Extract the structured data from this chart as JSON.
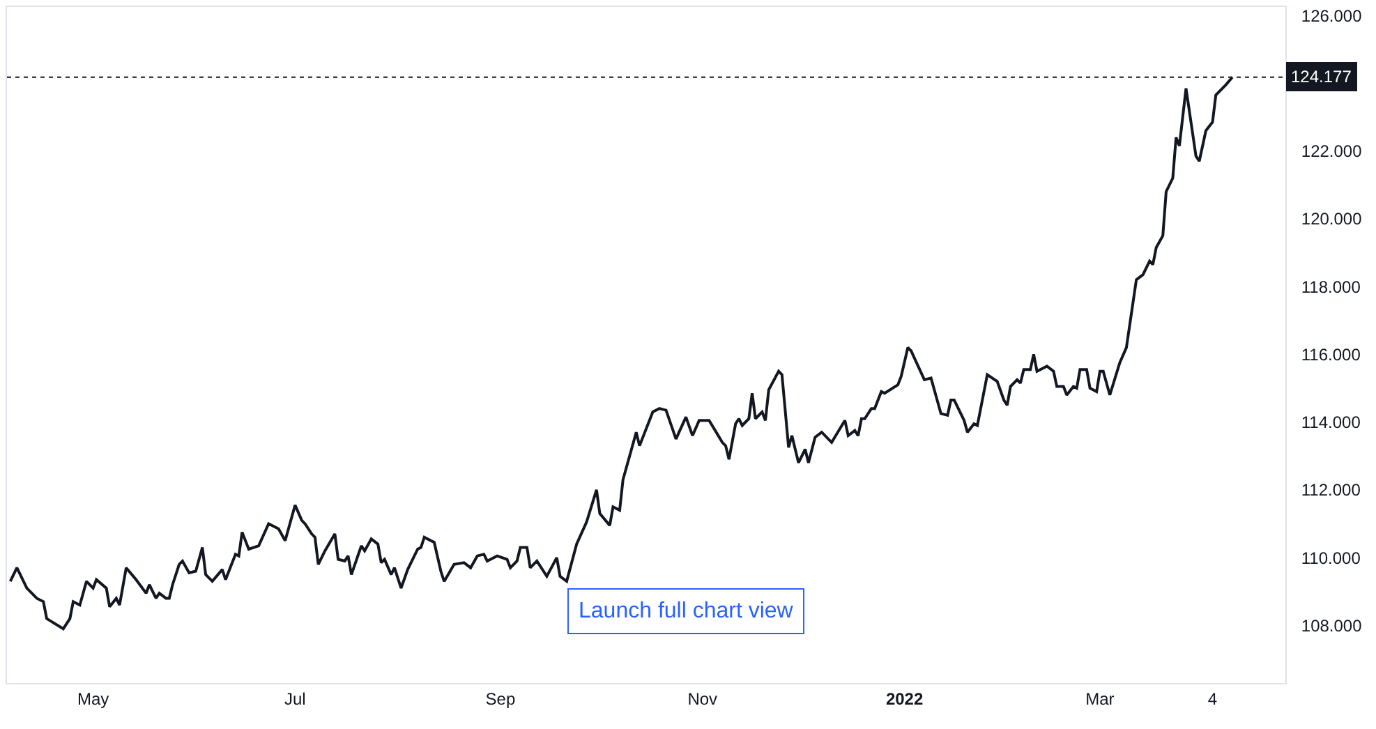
{
  "chart_data": {
    "type": "line",
    "x": [
      "2021-04-06",
      "2021-04-08",
      "2021-04-11",
      "2021-04-14",
      "2021-04-16",
      "2021-04-17",
      "2021-04-22",
      "2021-04-24",
      "2021-04-25",
      "2021-04-27",
      "2021-04-29",
      "2021-05-01",
      "2021-05-02",
      "2021-05-05",
      "2021-05-06",
      "2021-05-08",
      "2021-05-09",
      "2021-05-11",
      "2021-05-14",
      "2021-05-17",
      "2021-05-18",
      "2021-05-20",
      "2021-05-21",
      "2021-05-23",
      "2021-05-24",
      "2021-05-25",
      "2021-05-27",
      "2021-05-28",
      "2021-05-30",
      "2021-06-01",
      "2021-06-03",
      "2021-06-04",
      "2021-06-06",
      "2021-06-09",
      "2021-06-10",
      "2021-06-13",
      "2021-06-14",
      "2021-06-15",
      "2021-06-17",
      "2021-06-20",
      "2021-06-23",
      "2021-06-26",
      "2021-06-28",
      "2021-07-01",
      "2021-07-03",
      "2021-07-04",
      "2021-07-06",
      "2021-07-07",
      "2021-07-08",
      "2021-07-10",
      "2021-07-13",
      "2021-07-14",
      "2021-07-16",
      "2021-07-17",
      "2021-07-18",
      "2021-07-21",
      "2021-07-22",
      "2021-07-24",
      "2021-07-26",
      "2021-07-27",
      "2021-07-28",
      "2021-07-30",
      "2021-07-31",
      "2021-08-02",
      "2021-08-04",
      "2021-08-07",
      "2021-08-08",
      "2021-08-09",
      "2021-08-12",
      "2021-08-14",
      "2021-08-15",
      "2021-08-18",
      "2021-08-21",
      "2021-08-23",
      "2021-08-25",
      "2021-08-27",
      "2021-08-28",
      "2021-08-31",
      "2021-09-03",
      "2021-09-04",
      "2021-09-06",
      "2021-09-07",
      "2021-09-09",
      "2021-09-10",
      "2021-09-12",
      "2021-09-15",
      "2021-09-18",
      "2021-09-19",
      "2021-09-21",
      "2021-09-24",
      "2021-09-27",
      "2021-09-30",
      "2021-10-01",
      "2021-10-04",
      "2021-10-05",
      "2021-10-07",
      "2021-10-08",
      "2021-10-11",
      "2021-10-12",
      "2021-10-13",
      "2021-10-17",
      "2021-10-19",
      "2021-10-21",
      "2021-10-24",
      "2021-10-27",
      "2021-10-29",
      "2021-10-31",
      "2021-11-03",
      "2021-11-07",
      "2021-11-08",
      "2021-11-09",
      "2021-11-11",
      "2021-11-12",
      "2021-11-13",
      "2021-11-15",
      "2021-11-16",
      "2021-11-17",
      "2021-11-19",
      "2021-11-20",
      "2021-11-21",
      "2021-11-24",
      "2021-11-25",
      "2021-11-27",
      "2021-11-28",
      "2021-11-30",
      "2021-12-02",
      "2021-12-03",
      "2021-12-05",
      "2021-12-07",
      "2021-12-10",
      "2021-12-14",
      "2021-12-15",
      "2021-12-17",
      "2021-12-18",
      "2021-12-19",
      "2021-12-20",
      "2021-12-22",
      "2021-12-23",
      "2021-12-25",
      "2021-12-26",
      "2021-12-30",
      "2021-12-31",
      "2022-01-02",
      "2022-01-03",
      "2022-01-07",
      "2022-01-09",
      "2022-01-12",
      "2022-01-14",
      "2022-01-15",
      "2022-01-16",
      "2022-01-19",
      "2022-01-20",
      "2022-01-22",
      "2022-01-23",
      "2022-01-26",
      "2022-01-29",
      "2022-01-31",
      "2022-02-01",
      "2022-02-02",
      "2022-02-04",
      "2022-02-05",
      "2022-02-06",
      "2022-02-08",
      "2022-02-09",
      "2022-02-10",
      "2022-02-13",
      "2022-02-15",
      "2022-02-16",
      "2022-02-18",
      "2022-02-19",
      "2022-02-21",
      "2022-02-22",
      "2022-02-23",
      "2022-02-25",
      "2022-02-26",
      "2022-02-28",
      "2022-03-01",
      "2022-03-02",
      "2022-03-04",
      "2022-03-07",
      "2022-03-09",
      "2022-03-12",
      "2022-03-14",
      "2022-03-16",
      "2022-03-17",
      "2022-03-18",
      "2022-03-20",
      "2022-03-21",
      "2022-03-23",
      "2022-03-24",
      "2022-03-25",
      "2022-03-27",
      "2022-03-30",
      "2022-03-31",
      "2022-04-02",
      "2022-04-04",
      "2022-04-05",
      "2022-04-08",
      "2022-04-10"
    ],
    "series": [
      {
        "color": "#131722",
        "values": [
          109.3,
          109.7,
          109.1,
          108.8,
          108.7,
          108.2,
          107.9,
          108.2,
          108.7,
          108.6,
          109.3,
          109.1,
          109.35,
          109.1,
          108.55,
          108.8,
          108.6,
          109.7,
          109.35,
          108.95,
          109.2,
          108.8,
          108.95,
          108.8,
          108.8,
          109.2,
          109.8,
          109.9,
          109.55,
          109.6,
          110.3,
          109.5,
          109.3,
          109.65,
          109.35,
          110.1,
          110.05,
          110.75,
          110.25,
          110.35,
          111.0,
          110.85,
          110.5,
          111.55,
          111.1,
          111.0,
          110.7,
          110.6,
          109.8,
          110.2,
          110.7,
          109.95,
          109.9,
          110.05,
          109.5,
          110.35,
          110.2,
          110.55,
          110.4,
          109.85,
          109.95,
          109.5,
          109.7,
          109.1,
          109.65,
          110.25,
          110.3,
          110.6,
          110.45,
          109.6,
          109.3,
          109.8,
          109.85,
          109.7,
          110.05,
          110.1,
          109.9,
          110.05,
          109.95,
          109.7,
          109.9,
          110.3,
          110.3,
          109.7,
          109.9,
          109.45,
          110.0,
          109.45,
          109.3,
          110.4,
          111.05,
          112.0,
          111.3,
          110.95,
          111.5,
          111.4,
          112.3,
          113.35,
          113.7,
          113.3,
          114.3,
          114.4,
          114.35,
          113.5,
          114.15,
          113.6,
          114.05,
          114.05,
          113.4,
          113.3,
          112.9,
          113.95,
          114.1,
          113.9,
          114.1,
          114.85,
          114.1,
          114.3,
          114.05,
          114.95,
          115.5,
          115.4,
          113.25,
          113.6,
          112.8,
          113.2,
          112.8,
          113.55,
          113.7,
          113.4,
          114.05,
          113.6,
          113.75,
          113.6,
          114.1,
          114.1,
          114.4,
          114.4,
          114.9,
          114.85,
          115.1,
          115.35,
          116.2,
          116.1,
          115.25,
          115.3,
          114.25,
          114.2,
          114.65,
          114.65,
          114.05,
          113.7,
          113.95,
          113.9,
          115.4,
          115.2,
          114.65,
          114.5,
          115.05,
          115.25,
          115.15,
          115.55,
          115.55,
          116.0,
          115.5,
          115.65,
          115.5,
          115.05,
          115.05,
          114.8,
          115.05,
          115.0,
          115.55,
          115.55,
          115.0,
          114.9,
          115.5,
          115.5,
          114.8,
          115.75,
          116.2,
          118.2,
          118.35,
          118.75,
          118.65,
          119.15,
          119.5,
          120.8,
          121.2,
          122.4,
          122.15,
          123.85,
          121.85,
          121.7,
          122.6,
          122.85,
          123.65,
          123.95,
          124.177
        ]
      }
    ],
    "xlim": [
      "2021-04-05",
      "2022-04-26"
    ],
    "xticks": [
      {
        "value": "2021-05-01",
        "label": "May"
      },
      {
        "value": "2021-07-01",
        "label": "Jul"
      },
      {
        "value": "2021-09-01",
        "label": "Sep"
      },
      {
        "value": "2021-11-01",
        "label": "Nov"
      },
      {
        "value": "2022-01-01",
        "label": "2022"
      },
      {
        "value": "2022-03-01",
        "label": "Mar"
      },
      {
        "value": "2022-04-04",
        "label": "4"
      }
    ],
    "ylim": [
      106.3,
      126.25
    ],
    "yticks": [
      {
        "value": 108,
        "label": "108.000"
      },
      {
        "value": 110,
        "label": "110.000"
      },
      {
        "value": 112,
        "label": "112.000"
      },
      {
        "value": 114,
        "label": "114.000"
      },
      {
        "value": 116,
        "label": "116.000"
      },
      {
        "value": 118,
        "label": "118.000"
      },
      {
        "value": 120,
        "label": "120.000"
      },
      {
        "value": 122,
        "label": "122.000"
      },
      {
        "value": 126,
        "label": "126.000"
      }
    ],
    "ref_lines": [
      {
        "axis": "y",
        "value": 124.177,
        "label": "124.177",
        "color": "#131722",
        "line_style": "dotted"
      }
    ],
    "annotations": [
      "Launch full chart view"
    ],
    "marker": "none",
    "line_style": "solid"
  }
}
